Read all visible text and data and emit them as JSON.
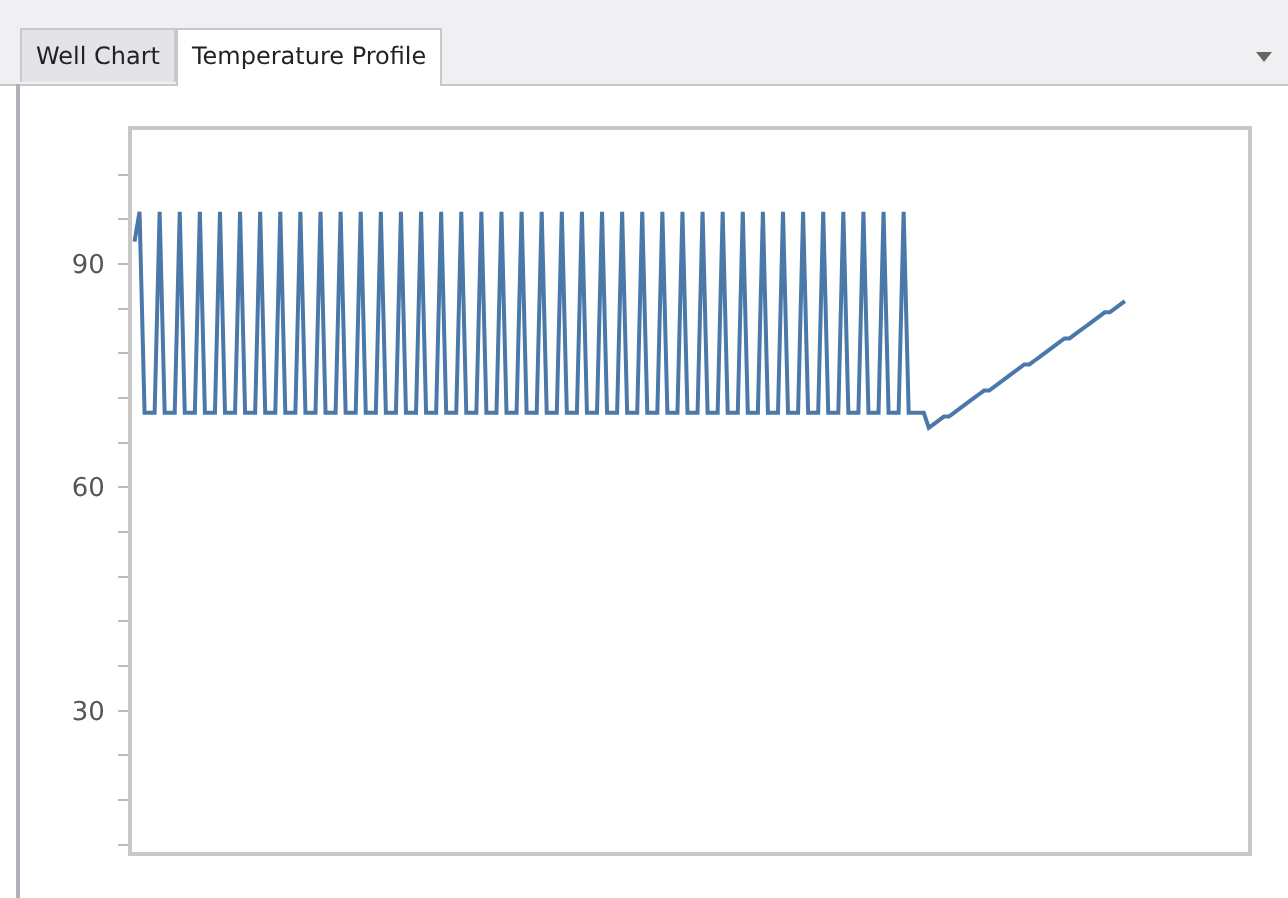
{
  "chart_data": {
    "type": "line",
    "annotations": [
      "Well Chart",
      "Temperature Profile"
    ],
    "categories": [
      null,
      null,
      null,
      null,
      null,
      null,
      null,
      null,
      null,
      null,
      null,
      null,
      null,
      null,
      null,
      null,
      null,
      null,
      null,
      null,
      null,
      null,
      null,
      null,
      null,
      null,
      null,
      null,
      null,
      null,
      null,
      null,
      null,
      null,
      null,
      null,
      null,
      null,
      null,
      null,
      null,
      null,
      null,
      null,
      null,
      null,
      null,
      null,
      null,
      null,
      null,
      null,
      null,
      null,
      null,
      null,
      null,
      null,
      null,
      null,
      null,
      null,
      null,
      null,
      null,
      null,
      null,
      null,
      null,
      null,
      null,
      null,
      null,
      null,
      null,
      null,
      null,
      null,
      null,
      null,
      null,
      null,
      null,
      null,
      null,
      null,
      null,
      null,
      null,
      null,
      null,
      null,
      null,
      null,
      null,
      null,
      null,
      null,
      null,
      null,
      null,
      null,
      null,
      null,
      null,
      null,
      null,
      null,
      null,
      null,
      null,
      null,
      null,
      null,
      null,
      null,
      null,
      null,
      null,
      null,
      null,
      null,
      null,
      null,
      null,
      null,
      null,
      null,
      null,
      null,
      null,
      null,
      null,
      null,
      null,
      null,
      null,
      null,
      null,
      null,
      null,
      null,
      null,
      null,
      null,
      null,
      null,
      null,
      null,
      null,
      null,
      null,
      null,
      null,
      null,
      null,
      null,
      null,
      null,
      null,
      null,
      null,
      null,
      null,
      null,
      null,
      null,
      null,
      null,
      null,
      null,
      null,
      null,
      null,
      null,
      null,
      null,
      null,
      null,
      null,
      null,
      null,
      null,
      null,
      null,
      null,
      null,
      null,
      null,
      null,
      null,
      null,
      null,
      null,
      null,
      null,
      null,
      null,
      null,
      null,
      null,
      null,
      null,
      null,
      null,
      null,
      null,
      null,
      null,
      null,
      null,
      null,
      null,
      null,
      null,
      null,
      null,
      null,
      null,
      null,
      null,
      null
    ],
    "series": [
      {
        "color": "#4a78a8",
        "values": [
          93,
          97,
          70,
          70,
          70,
          97,
          70,
          70,
          70,
          97,
          70,
          70,
          70,
          97,
          70,
          70,
          70,
          97,
          70,
          70,
          70,
          97,
          70,
          70,
          70,
          97,
          70,
          70,
          70,
          97,
          70,
          70,
          70,
          97,
          70,
          70,
          70,
          97,
          70,
          70,
          70,
          97,
          70,
          70,
          70,
          97,
          70,
          70,
          70,
          97,
          70,
          70,
          70,
          97,
          70,
          70,
          70,
          97,
          70,
          70,
          70,
          97,
          70,
          70,
          70,
          97,
          70,
          70,
          70,
          97,
          70,
          70,
          70,
          97,
          70,
          70,
          70,
          97,
          70,
          70,
          70,
          97,
          70,
          70,
          70,
          97,
          70,
          70,
          70,
          97,
          70,
          70,
          70,
          97,
          70,
          70,
          70,
          97,
          70,
          70,
          70,
          97,
          70,
          70,
          70,
          97,
          70,
          70,
          70,
          97,
          70,
          70,
          70,
          97,
          70,
          70,
          70,
          97,
          70,
          70,
          70,
          97,
          70,
          70,
          70,
          97,
          70,
          70,
          70,
          97,
          70,
          70,
          70,
          97,
          70,
          70,
          70,
          97,
          70,
          70,
          70,
          97,
          70,
          70,
          70,
          97,
          70,
          70,
          70,
          97,
          70,
          70,
          70,
          97,
          70,
          70,
          70,
          70,
          68,
          68.5,
          69,
          69.5,
          69.5,
          70,
          70.5,
          71,
          71.5,
          72,
          72.5,
          73,
          73,
          73.5,
          74,
          74.5,
          75,
          75.5,
          76,
          76.5,
          76.5,
          77,
          77.5,
          78,
          78.5,
          79,
          79.5,
          80,
          80,
          80.5,
          81,
          81.5,
          82,
          82.5,
          83,
          83.5,
          83.5,
          84,
          84.5,
          85,
          null,
          null,
          null,
          null,
          null,
          null,
          null,
          null,
          null,
          null,
          null,
          null,
          null,
          null,
          null,
          null,
          null,
          null,
          null,
          null,
          null,
          null,
          null,
          null
        ]
      }
    ],
    "ylim": [
      11,
      108
    ],
    "yticks": [
      {
        "value": 12,
        "label": null
      },
      {
        "value": 18,
        "label": null
      },
      {
        "value": 24,
        "label": null
      },
      30,
      {
        "value": 36,
        "label": null
      },
      {
        "value": 42,
        "label": null
      },
      {
        "value": 48,
        "label": null
      },
      {
        "value": 54,
        "label": null
      },
      60,
      {
        "value": 66,
        "label": null
      },
      {
        "value": 72,
        "label": null
      },
      {
        "value": 78,
        "label": null
      },
      {
        "value": 84,
        "label": null
      },
      90,
      {
        "value": 96,
        "label": null
      },
      {
        "value": 102,
        "label": null
      }
    ],
    "grid": false,
    "marker": "none",
    "line_style": "solid"
  }
}
